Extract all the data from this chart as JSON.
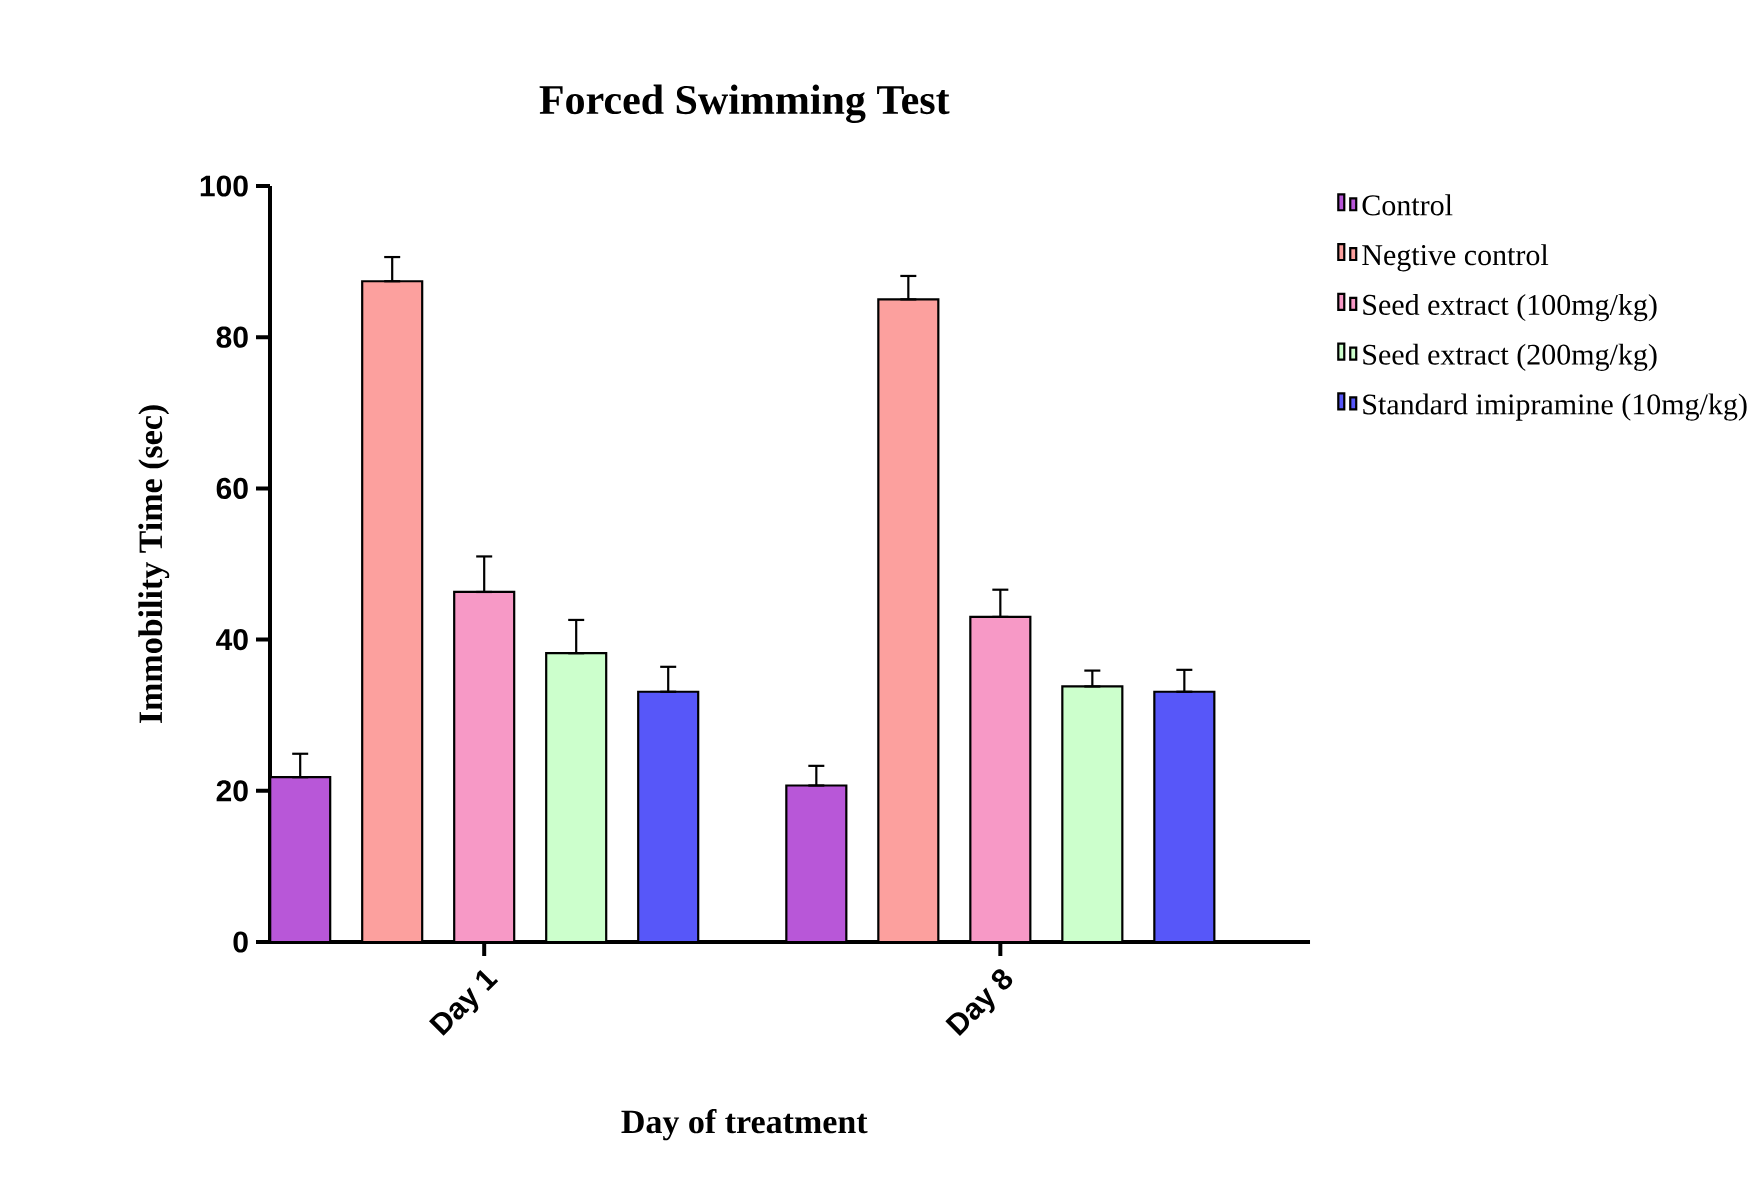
{
  "chart_data": {
    "type": "bar",
    "title": "Forced Swimming Test",
    "xlabel": "Day of treatment",
    "ylabel": "Immobility Time (sec)",
    "categories": [
      "Day 1",
      "Day 8"
    ],
    "series": [
      {
        "name": "Control",
        "color": "#b857d8",
        "values": [
          21.8,
          20.7
        ],
        "errors": [
          [
            21.8,
            24.9
          ],
          [
            20.7,
            23.3
          ]
        ]
      },
      {
        "name": "Negtive control",
        "color": "#fca09e",
        "values": [
          87.4,
          85.0
        ],
        "errors": [
          [
            87.4,
            90.6
          ],
          [
            85.0,
            88.1
          ]
        ]
      },
      {
        "name": "Seed extract (100mg/kg)",
        "color": "#f799c6",
        "values": [
          46.3,
          43.0
        ],
        "errors": [
          [
            46.3,
            51.0
          ],
          [
            43.0,
            46.6
          ]
        ]
      },
      {
        "name": "Seed extract (200mg/kg)",
        "color": "#ccffcc",
        "values": [
          38.2,
          33.8
        ],
        "errors": [
          [
            38.2,
            42.6
          ],
          [
            33.8,
            35.9
          ]
        ]
      },
      {
        "name": "Standard imipramine (10mg/kg)",
        "color": "#5757f9",
        "values": [
          33.1,
          33.1
        ],
        "errors": [
          [
            33.1,
            36.4
          ],
          [
            33.1,
            36.0
          ]
        ]
      }
    ],
    "ylim": [
      0,
      100
    ],
    "yticks": [
      0,
      20,
      40,
      60,
      80,
      100
    ],
    "grid": false,
    "legend": "top right"
  }
}
